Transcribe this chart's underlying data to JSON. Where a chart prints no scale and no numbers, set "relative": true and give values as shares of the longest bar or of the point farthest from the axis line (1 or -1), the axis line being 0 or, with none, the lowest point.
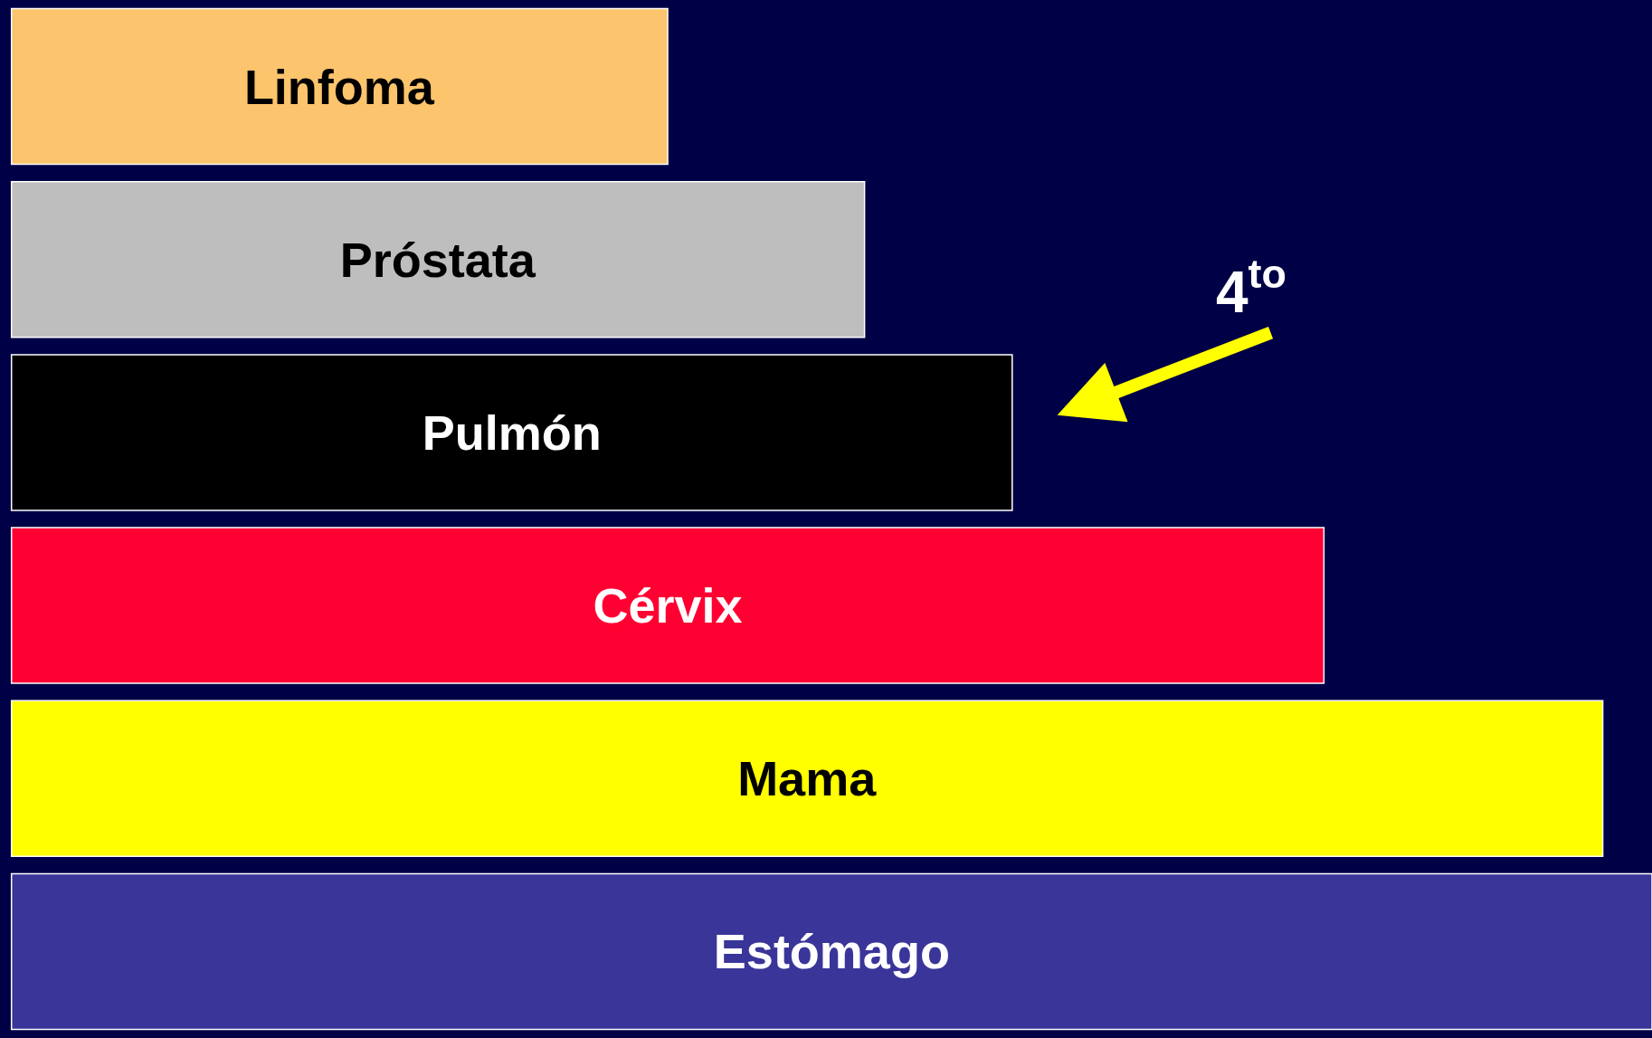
{
  "chart_data": {
    "type": "bar",
    "orientation": "horizontal",
    "relative": true,
    "categories": [
      "Linfoma",
      "Próstata",
      "Pulmón",
      "Cérvix",
      "Mama",
      "Estómago"
    ],
    "values": [
      0.4,
      0.52,
      0.61,
      0.8,
      0.97,
      1
    ],
    "colors": [
      "#fcc46c",
      "#bebebe",
      "#000000",
      "#ff0033",
      "#ffff00",
      "#3a3599"
    ],
    "annotations": [
      "4$^{to}$"
    ]
  }
}
